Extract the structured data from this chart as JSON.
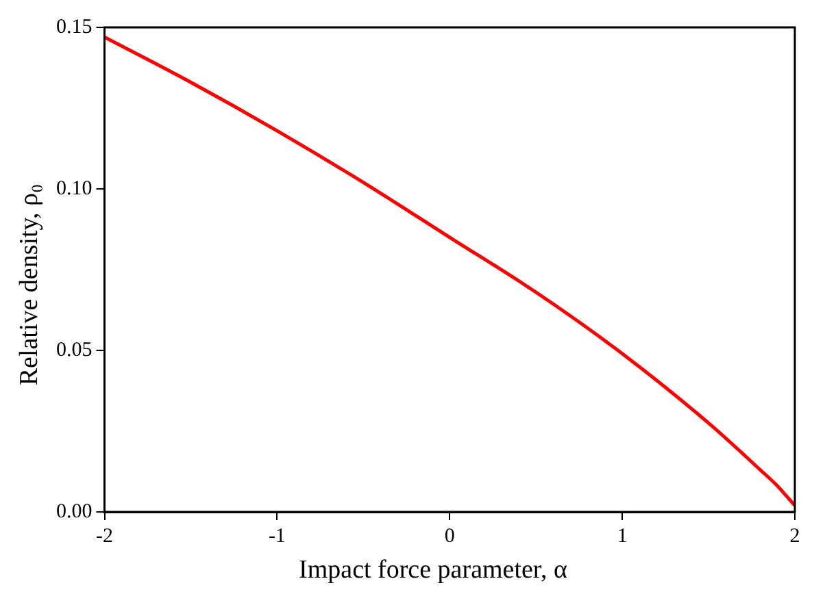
{
  "chart_data": {
    "type": "line",
    "xlabel": "Impact force parameter, α",
    "ylabel": "Relative density, ρ₀",
    "series": [
      {
        "color": "#ff0000",
        "x": [
          -2,
          -1.5,
          -1,
          -0.5,
          0,
          0.5,
          1,
          1.5,
          1.8,
          1.9,
          1.95,
          2
        ],
        "values": [
          0.147,
          0.133,
          0.118,
          0.102,
          0.085,
          0.068,
          0.049,
          0.0275,
          0.013,
          0.008,
          0.005,
          0.002
        ]
      }
    ],
    "xlim": [
      -2,
      2
    ],
    "xticks": [
      -2,
      -1,
      0,
      1,
      2
    ],
    "ylim": [
      0,
      0.15
    ],
    "yticks": [
      {
        "value": 0,
        "label": "0.00"
      },
      {
        "value": 0.05,
        "label": "0.05"
      },
      {
        "value": 0.1,
        "label": "0.10"
      },
      {
        "value": 0.15,
        "label": "0.15"
      }
    ],
    "grid": false,
    "legend": false,
    "marker": "none",
    "line_style": "solid"
  }
}
